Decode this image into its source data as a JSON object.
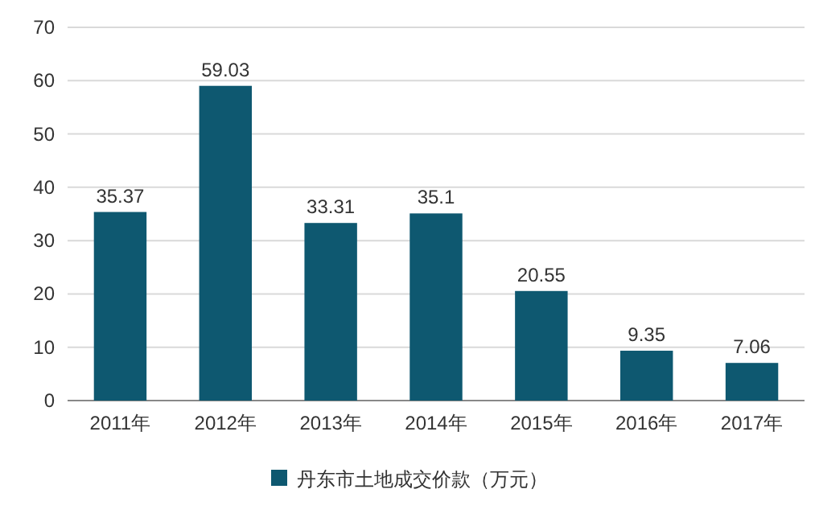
{
  "chart_data": {
    "type": "bar",
    "categories": [
      "2011年",
      "2012年",
      "2013年",
      "2014年",
      "2015年",
      "2016年",
      "2017年"
    ],
    "series": [
      {
        "name": "丹东市土地成交价款（万元）",
        "color": "#0e5870",
        "values": [
          35.37,
          59.03,
          33.31,
          35.1,
          20.55,
          9.35,
          7.06
        ]
      }
    ],
    "ylim": [
      0,
      70
    ],
    "yticks": [
      0,
      10,
      20,
      30,
      40,
      50,
      60,
      70
    ],
    "grid": "y",
    "legend": "bottom",
    "data_labels": true
  }
}
